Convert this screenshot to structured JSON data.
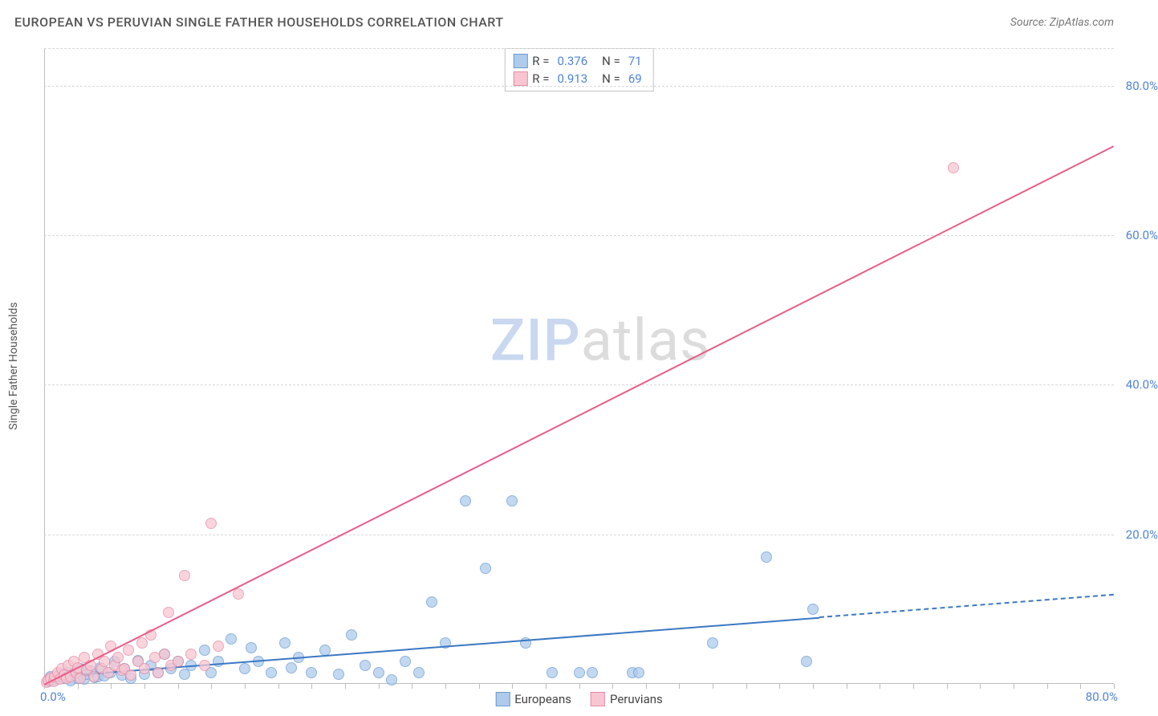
{
  "header": {
    "title": "EUROPEAN VS PERUVIAN SINGLE FATHER HOUSEHOLDS CORRELATION CHART",
    "source": "Source: ZipAtlas.com"
  },
  "watermark": {
    "part1": "ZIP",
    "part2": "atlas"
  },
  "chart": {
    "type": "scatter",
    "ylabel": "Single Father Households",
    "xlim": [
      0,
      80
    ],
    "ylim": [
      0,
      85
    ],
    "y_ticks": [
      20,
      40,
      60,
      80
    ],
    "y_tick_labels": [
      "20.0%",
      "40.0%",
      "60.0%",
      "80.0%"
    ],
    "x_origin_label": "0.0%",
    "x_max_label": "80.0%",
    "x_minor_ticks": [
      0,
      2.5,
      5,
      7.5,
      10,
      12.5,
      15,
      17.5,
      20,
      22.5,
      25,
      27.5,
      30,
      32.5,
      35,
      37.5,
      40,
      42.5,
      45,
      47.5,
      50,
      52.5,
      55,
      57.5,
      60,
      62.5,
      65,
      67.5,
      70,
      72.5,
      75,
      77.5,
      80
    ],
    "grid_color": "#d8d8d8",
    "axis_color": "#bdbdbd",
    "tick_label_color": "#4f84d6",
    "background_color": "#ffffff",
    "series": [
      {
        "name": "Europeans",
        "marker_fill": "#aecbeb",
        "marker_stroke": "#6b9bd1",
        "marker_opacity": 0.75,
        "marker_radius": 7,
        "line_color": "#3b78c4",
        "line_solid_end_x": 58,
        "line_dashed": true,
        "regression": {
          "x1": 0,
          "y1": 1,
          "x2": 80,
          "y2": 12
        },
        "R": "0.376",
        "N": "71",
        "points": [
          [
            0.3,
            0.3
          ],
          [
            0.5,
            1.0
          ],
          [
            0.8,
            0.5
          ],
          [
            1.0,
            1.0
          ],
          [
            1.2,
            1.4
          ],
          [
            1.5,
            0.7
          ],
          [
            1.8,
            1.5
          ],
          [
            2.0,
            0.4
          ],
          [
            2.2,
            1.2
          ],
          [
            2.5,
            0.8
          ],
          [
            2.7,
            2.0
          ],
          [
            3.0,
            0.6
          ],
          [
            3.2,
            1.3
          ],
          [
            3.5,
            1.7
          ],
          [
            3.8,
            0.9
          ],
          [
            4.0,
            1.0
          ],
          [
            4.2,
            2.2
          ],
          [
            4.5,
            1.1
          ],
          [
            5.0,
            1.5
          ],
          [
            5.3,
            3.0
          ],
          [
            5.8,
            1.2
          ],
          [
            6.0,
            2.0
          ],
          [
            6.5,
            0.7
          ],
          [
            7.0,
            3.1
          ],
          [
            7.5,
            1.3
          ],
          [
            8.0,
            2.5
          ],
          [
            8.5,
            1.5
          ],
          [
            9.0,
            4.0
          ],
          [
            9.5,
            2.0
          ],
          [
            10.0,
            3.0
          ],
          [
            10.5,
            1.3
          ],
          [
            11.0,
            2.5
          ],
          [
            12.0,
            4.5
          ],
          [
            12.5,
            1.5
          ],
          [
            13.0,
            3.0
          ],
          [
            14.0,
            6.0
          ],
          [
            15.0,
            2.0
          ],
          [
            15.5,
            4.8
          ],
          [
            16.0,
            3.0
          ],
          [
            17.0,
            1.5
          ],
          [
            18.0,
            5.5
          ],
          [
            18.5,
            2.2
          ],
          [
            19.0,
            3.5
          ],
          [
            20.0,
            1.5
          ],
          [
            21.0,
            4.5
          ],
          [
            22.0,
            1.3
          ],
          [
            23.0,
            6.5
          ],
          [
            24.0,
            2.5
          ],
          [
            25.0,
            1.5
          ],
          [
            26.0,
            0.5
          ],
          [
            27.0,
            3.0
          ],
          [
            28.0,
            1.5
          ],
          [
            29.0,
            11.0
          ],
          [
            30.0,
            5.5
          ],
          [
            31.5,
            24.5
          ],
          [
            33.0,
            15.5
          ],
          [
            35.0,
            24.5
          ],
          [
            36.0,
            5.5
          ],
          [
            38.0,
            1.5
          ],
          [
            40.0,
            1.5
          ],
          [
            41.0,
            1.5
          ],
          [
            44.0,
            1.5
          ],
          [
            44.5,
            1.5
          ],
          [
            50.0,
            5.5
          ],
          [
            54.0,
            17.0
          ],
          [
            57.0,
            3.0
          ],
          [
            57.5,
            10.0
          ]
        ]
      },
      {
        "name": "Peruvians",
        "marker_fill": "#f8c6d2",
        "marker_stroke": "#e48aa4",
        "marker_opacity": 0.75,
        "marker_radius": 7,
        "line_color": "#e85d87",
        "line_solid_end_x": 80,
        "line_dashed": false,
        "regression": {
          "x1": 0,
          "y1": 0,
          "x2": 80,
          "y2": 72
        },
        "R": "0.913",
        "N": "69",
        "points": [
          [
            0.2,
            0.2
          ],
          [
            0.3,
            0.5
          ],
          [
            0.5,
            0.8
          ],
          [
            0.7,
            0.3
          ],
          [
            0.8,
            1.0
          ],
          [
            1.0,
            1.5
          ],
          [
            1.2,
            0.6
          ],
          [
            1.3,
            2.0
          ],
          [
            1.5,
            1.2
          ],
          [
            1.7,
            0.8
          ],
          [
            1.8,
            2.5
          ],
          [
            2.0,
            1.0
          ],
          [
            2.2,
            3.0
          ],
          [
            2.4,
            1.5
          ],
          [
            2.5,
            2.2
          ],
          [
            2.7,
            0.7
          ],
          [
            3.0,
            3.5
          ],
          [
            3.2,
            1.8
          ],
          [
            3.5,
            2.5
          ],
          [
            3.7,
            1.0
          ],
          [
            4.0,
            4.0
          ],
          [
            4.3,
            2.0
          ],
          [
            4.5,
            3.0
          ],
          [
            4.8,
            1.5
          ],
          [
            5.0,
            5.0
          ],
          [
            5.3,
            2.5
          ],
          [
            5.5,
            3.5
          ],
          [
            5.8,
            1.8
          ],
          [
            6.0,
            2.0
          ],
          [
            6.3,
            4.5
          ],
          [
            6.5,
            1.2
          ],
          [
            7.0,
            3.0
          ],
          [
            7.3,
            5.5
          ],
          [
            7.5,
            2.0
          ],
          [
            8.0,
            6.5
          ],
          [
            8.3,
            3.5
          ],
          [
            8.5,
            1.5
          ],
          [
            9.0,
            4.0
          ],
          [
            9.3,
            9.5
          ],
          [
            9.5,
            2.5
          ],
          [
            10.0,
            3.0
          ],
          [
            10.5,
            14.5
          ],
          [
            11.0,
            4.0
          ],
          [
            12.0,
            2.5
          ],
          [
            12.5,
            21.5
          ],
          [
            13.0,
            5.0
          ],
          [
            14.5,
            12.0
          ],
          [
            68.0,
            69.0
          ]
        ]
      }
    ],
    "legend_stats": {
      "label_r": "R =",
      "label_n": "N ="
    },
    "bottom_legend": [
      {
        "label": "Europeans",
        "fill": "#aecbeb",
        "stroke": "#6b9bd1"
      },
      {
        "label": "Peruvians",
        "fill": "#f8c6d2",
        "stroke": "#e48aa4"
      }
    ]
  }
}
